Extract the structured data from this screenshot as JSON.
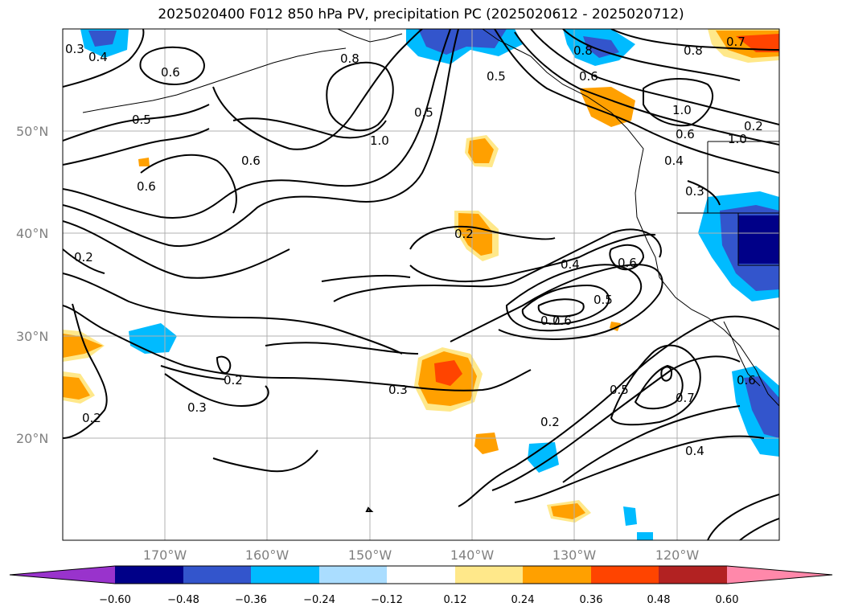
{
  "title": "2025020400 F012 850 hPa PV, precipitation PC (2025020612 - 2025020712)",
  "map": {
    "lat_labels": [
      "50°N",
      "40°N",
      "30°N",
      "20°N"
    ],
    "lon_labels": [
      "170°W",
      "160°W",
      "150°W",
      "140°W",
      "130°W",
      "120°W"
    ],
    "grid": true
  },
  "contours": {
    "labels": [
      "0.3",
      "0.4",
      "0.6",
      "0.5",
      "0.6",
      "0.8",
      "0.8",
      "0.7",
      "1.0",
      "0.5",
      "0.6",
      "0.5",
      "0.8",
      "1.0",
      "0.6",
      "0.4",
      "0.3",
      "0.6",
      "0.2",
      "0.2",
      "0.4",
      "0.6",
      "0.5",
      "0.7",
      "0.6",
      "0.3",
      "0.2",
      "0.3",
      "0.2",
      "0.2",
      "0.5",
      "0.7",
      "0.6",
      "0.4",
      "0.2",
      "1.0"
    ]
  },
  "colorbar": {
    "colors": [
      "#9933cc",
      "#000088",
      "#3355cc",
      "#00bbff",
      "#aaddff",
      "#ffffff",
      "#ffe88a",
      "#ffa000",
      "#ff4400",
      "#b22222",
      "#ff88aa"
    ],
    "ticks": [
      "−0.60",
      "−0.48",
      "−0.36",
      "−0.24",
      "−0.12",
      "0.12",
      "0.24",
      "0.36",
      "0.48",
      "0.60"
    ]
  }
}
